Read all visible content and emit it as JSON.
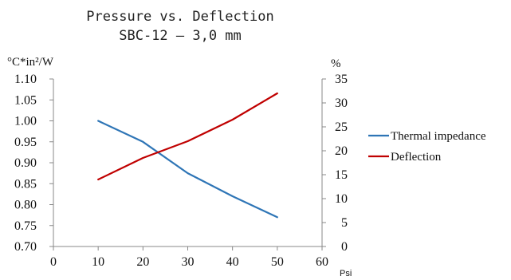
{
  "chart_data": {
    "type": "line",
    "title": "Pressure vs. Deflection",
    "subtitle": "SBC-12 – 3,0 mm",
    "xlabel": "Psi",
    "ylabel_left": "°C*in²/W",
    "ylabel_right": "%",
    "xlim": [
      0,
      60
    ],
    "ylim_left": [
      0.7,
      1.1
    ],
    "ylim_right": [
      0,
      35
    ],
    "x_ticks": [
      "0",
      "10",
      "20",
      "30",
      "40",
      "50",
      "60"
    ],
    "y_left_ticks": [
      "0.70",
      "0.75",
      "0.80",
      "0.85",
      "0.90",
      "0.95",
      "1.00",
      "1.05",
      "1.10"
    ],
    "y_right_ticks": [
      "0",
      "5",
      "10",
      "15",
      "20",
      "25",
      "30",
      "35"
    ],
    "grid": false,
    "legend_position": "right",
    "series": [
      {
        "name": "Thermal impedance",
        "axis": "left",
        "color": "#2e75b6",
        "x": [
          10,
          20,
          30,
          40,
          50
        ],
        "y": [
          1.0,
          0.95,
          0.875,
          0.82,
          0.77
        ]
      },
      {
        "name": "Deflection",
        "axis": "right",
        "color": "#c00000",
        "x": [
          10,
          20,
          30,
          40,
          50
        ],
        "y": [
          14,
          18.5,
          22,
          26.5,
          32
        ]
      }
    ]
  }
}
